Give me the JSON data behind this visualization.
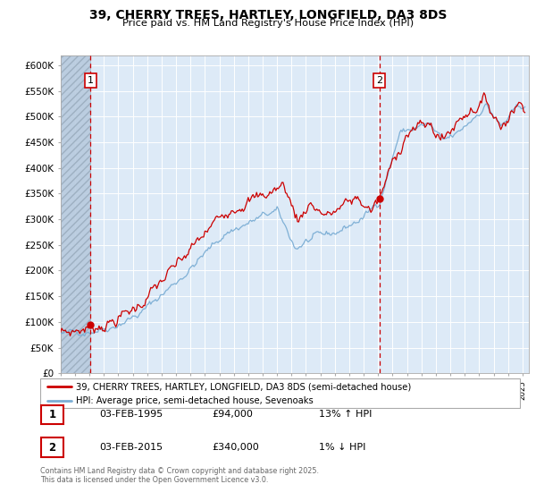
{
  "title": "39, CHERRY TREES, HARTLEY, LONGFIELD, DA3 8DS",
  "subtitle": "Price paid vs. HM Land Registry's House Price Index (HPI)",
  "ylim": [
    0,
    620000
  ],
  "xlim_start": 1993.0,
  "xlim_end": 2025.42,
  "purchase1_date": 1995.085,
  "purchase1_price": 94000,
  "purchase2_date": 2015.085,
  "purchase2_price": 340000,
  "legend_line1": "39, CHERRY TREES, HARTLEY, LONGFIELD, DA3 8DS (semi-detached house)",
  "legend_line2": "HPI: Average price, semi-detached house, Sevenoaks",
  "table_row1": [
    "1",
    "03-FEB-1995",
    "£94,000",
    "13% ↑ HPI"
  ],
  "table_row2": [
    "2",
    "03-FEB-2015",
    "£340,000",
    "1% ↓ HPI"
  ],
  "footnote": "Contains HM Land Registry data © Crown copyright and database right 2025.\nThis data is licensed under the Open Government Licence v3.0.",
  "line_color_price": "#cc0000",
  "line_color_hpi": "#7aadd4",
  "bg_color": "#ddeaf7",
  "grid_color": "#ffffff",
  "hatch_color": "#b8cade"
}
